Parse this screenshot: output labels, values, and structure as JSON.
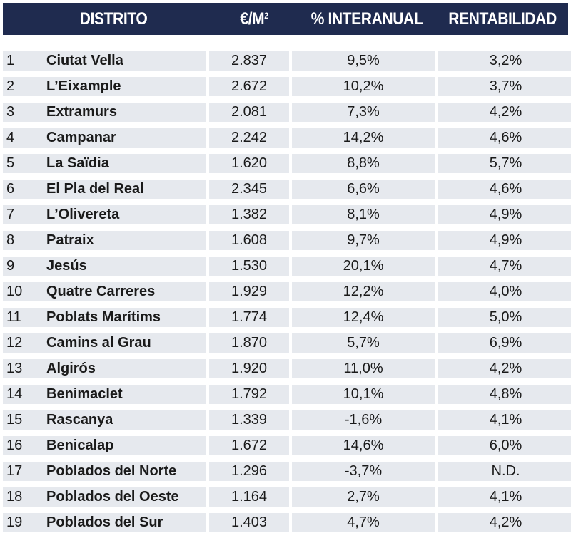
{
  "header": {
    "distrito": "DISTRITO",
    "price": "€/M",
    "price_sup": "2",
    "interanual": "% INTERANUAL",
    "rentabilidad": "RENTABILIDAD"
  },
  "rows": [
    {
      "num": "1",
      "name": "Ciutat Vella",
      "price": "2.837",
      "inter": "9,5%",
      "rent": "3,2%"
    },
    {
      "num": "2",
      "name": "L’Eixample",
      "price": "2.672",
      "inter": "10,2%",
      "rent": "3,7%"
    },
    {
      "num": "3",
      "name": "Extramurs",
      "price": "2.081",
      "inter": "7,3%",
      "rent": "4,2%"
    },
    {
      "num": "4",
      "name": "Campanar",
      "price": "2.242",
      "inter": "14,2%",
      "rent": "4,6%"
    },
    {
      "num": "5",
      "name": "La Saïdia",
      "price": "1.620",
      "inter": "8,8%",
      "rent": "5,7%"
    },
    {
      "num": "6",
      "name": "El Pla del Real",
      "price": "2.345",
      "inter": "6,6%",
      "rent": "4,6%"
    },
    {
      "num": "7",
      "name": "L’Olivereta",
      "price": "1.382",
      "inter": "8,1%",
      "rent": "4,9%"
    },
    {
      "num": "8",
      "name": "Patraix",
      "price": "1.608",
      "inter": "9,7%",
      "rent": "4,9%"
    },
    {
      "num": "9",
      "name": "Jesús",
      "price": "1.530",
      "inter": "20,1%",
      "rent": "4,7%"
    },
    {
      "num": "10",
      "name": "Quatre Carreres",
      "price": "1.929",
      "inter": "12,2%",
      "rent": "4,0%"
    },
    {
      "num": "11",
      "name": "Poblats Marítims",
      "price": "1.774",
      "inter": "12,4%",
      "rent": "5,0%"
    },
    {
      "num": "12",
      "name": "Camins al Grau",
      "price": "1.870",
      "inter": "5,7%",
      "rent": "6,9%"
    },
    {
      "num": "13",
      "name": "Algirós",
      "price": "1.920",
      "inter": "11,0%",
      "rent": "4,2%"
    },
    {
      "num": "14",
      "name": "Benimaclet",
      "price": "1.792",
      "inter": "10,1%",
      "rent": "4,8%"
    },
    {
      "num": "15",
      "name": "Rascanya",
      "price": "1.339",
      "inter": "-1,6%",
      "rent": "4,1%"
    },
    {
      "num": "16",
      "name": "Benicalap",
      "price": "1.672",
      "inter": "14,6%",
      "rent": "6,0%"
    },
    {
      "num": "17",
      "name": "Poblados del Norte",
      "price": "1.296",
      "inter": "-3,7%",
      "rent": "N.D."
    },
    {
      "num": "18",
      "name": "Poblados del Oeste",
      "price": "1.164",
      "inter": "2,7%",
      "rent": "4,1%"
    },
    {
      "num": "19",
      "name": "Poblados del Sur",
      "price": "1.403",
      "inter": "4,7%",
      "rent": "4,2%"
    }
  ]
}
